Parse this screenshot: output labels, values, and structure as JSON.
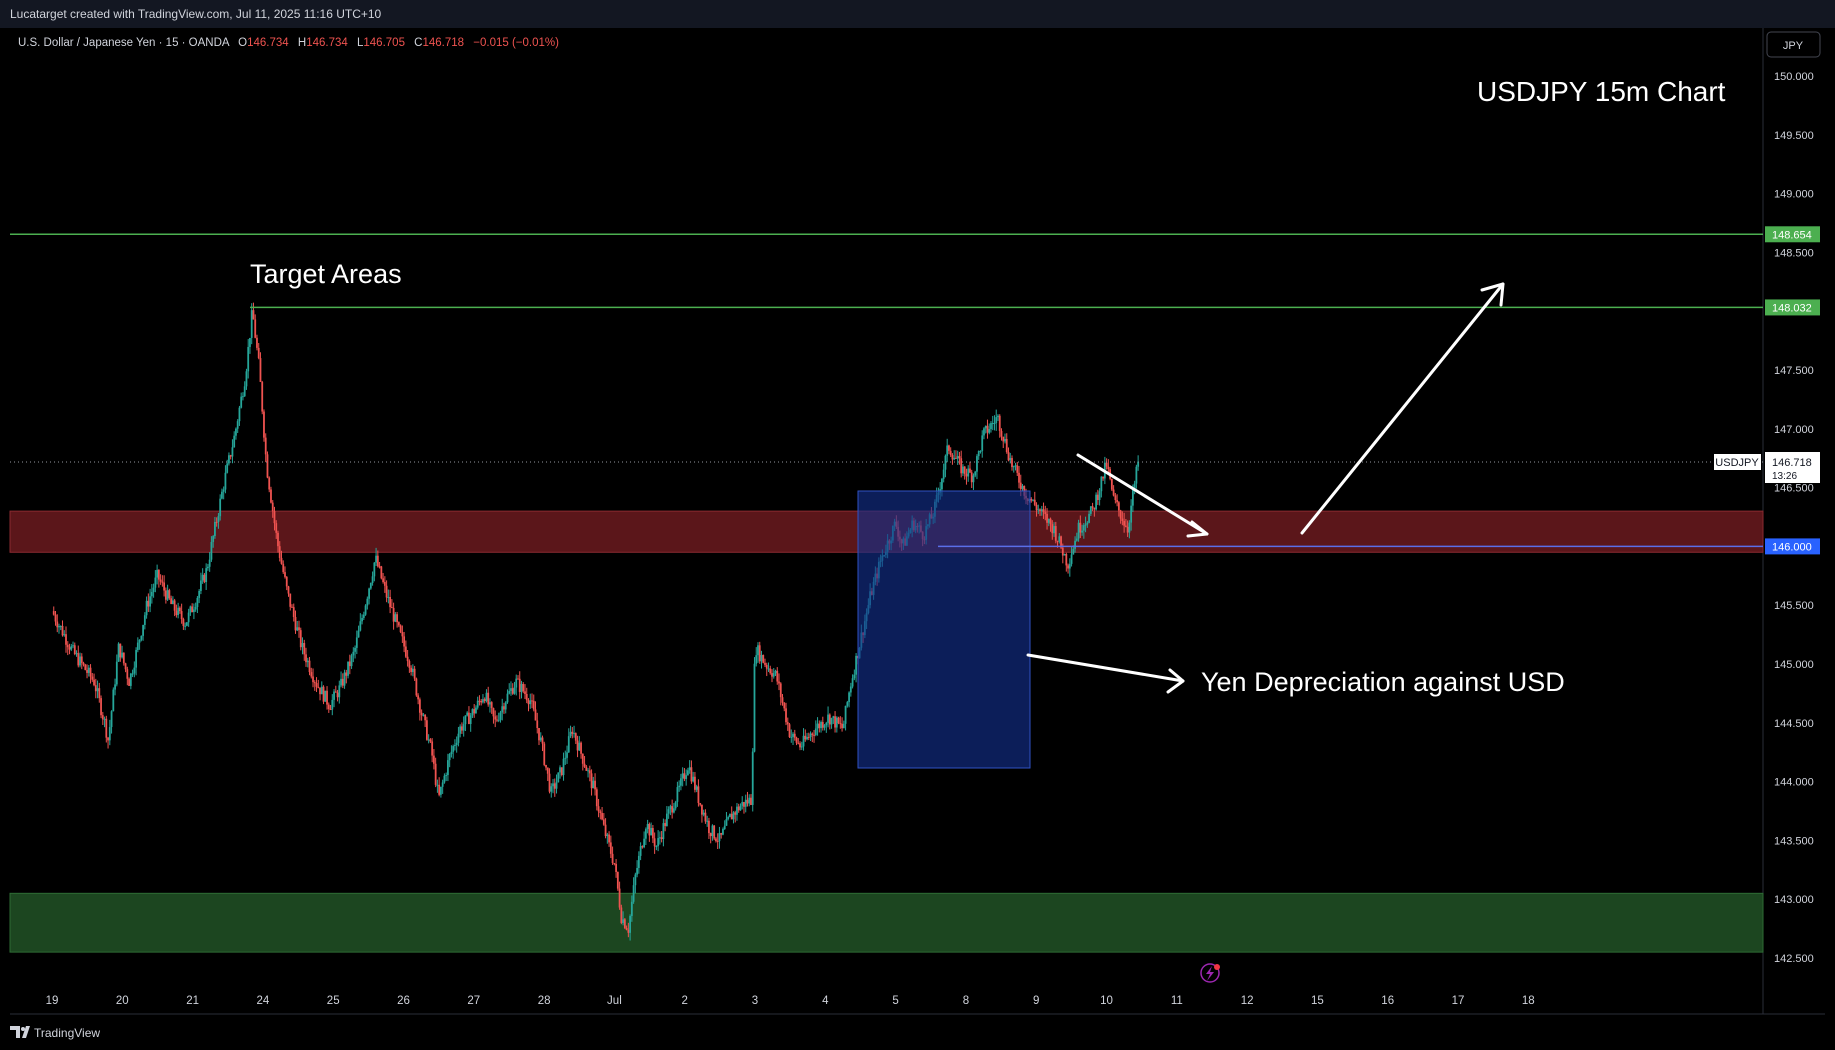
{
  "header": {
    "creator": "Lucatarget created with TradingView.com, Jul 11, 2025 11:16 UTC+10"
  },
  "legend": {
    "symbol": "U.S. Dollar / Japanese Yen · 15 · OANDA",
    "o_label": "O",
    "o_value": "146.734",
    "h_label": "H",
    "h_value": "146.734",
    "l_label": "L",
    "l_value": "146.705",
    "c_label": "C",
    "c_value": "146.718",
    "change": "−0.015 (−0.01%)"
  },
  "currency_button": "JPY",
  "footer": {
    "brand": "TradingView"
  },
  "colors": {
    "background": "#000000",
    "up": "#26a69a",
    "down": "#ef5350",
    "target_line": "#4caf50",
    "resistance_zone": "#6b1a1f",
    "support_zone": "#1e4a22",
    "blue_box": "#0f2a6b",
    "price_line": "#2962ff"
  },
  "chart_data": {
    "type": "candlestick",
    "title": "USDJPY 15m Chart",
    "symbol_tag": "USDJPY",
    "last_price": "146.718",
    "countdown": "13:26",
    "x_ticks": [
      "19",
      "20",
      "21",
      "24",
      "25",
      "26",
      "27",
      "28",
      "Jul",
      "2",
      "3",
      "4",
      "5",
      "8",
      "9",
      "10",
      "11",
      "12",
      "15",
      "16",
      "17",
      "18"
    ],
    "y_ticks": [
      "150.000",
      "149.500",
      "149.000",
      "148.500",
      "147.500",
      "147.000",
      "146.500",
      "145.500",
      "145.000",
      "144.500",
      "144.000",
      "143.500",
      "143.000",
      "142.500"
    ],
    "ylim": [
      142.38,
      150.25
    ],
    "price_points": [
      {
        "x": 0.0,
        "y": 145.45
      },
      {
        "x": 0.3,
        "y": 145.1
      },
      {
        "x": 0.6,
        "y": 144.85
      },
      {
        "x": 0.75,
        "y": 144.5
      },
      {
        "x": 0.8,
        "y": 144.35
      },
      {
        "x": 0.95,
        "y": 145.15
      },
      {
        "x": 1.1,
        "y": 144.85
      },
      {
        "x": 1.2,
        "y": 145.1
      },
      {
        "x": 1.35,
        "y": 145.5
      },
      {
        "x": 1.5,
        "y": 145.75
      },
      {
        "x": 1.7,
        "y": 145.5
      },
      {
        "x": 1.9,
        "y": 145.35
      },
      {
        "x": 2.05,
        "y": 145.55
      },
      {
        "x": 2.2,
        "y": 145.8
      },
      {
        "x": 2.3,
        "y": 146.1
      },
      {
        "x": 2.45,
        "y": 146.55
      },
      {
        "x": 2.6,
        "y": 146.95
      },
      {
        "x": 2.75,
        "y": 147.45
      },
      {
        "x": 2.85,
        "y": 148.0
      },
      {
        "x": 2.95,
        "y": 147.5
      },
      {
        "x": 3.05,
        "y": 146.7
      },
      {
        "x": 3.2,
        "y": 146.05
      },
      {
        "x": 3.35,
        "y": 145.6
      },
      {
        "x": 3.55,
        "y": 145.15
      },
      {
        "x": 3.75,
        "y": 144.85
      },
      {
        "x": 3.95,
        "y": 144.65
      },
      {
        "x": 4.1,
        "y": 144.8
      },
      {
        "x": 4.3,
        "y": 145.1
      },
      {
        "x": 4.45,
        "y": 145.5
      },
      {
        "x": 4.6,
        "y": 145.9
      },
      {
        "x": 4.75,
        "y": 145.6
      },
      {
        "x": 4.95,
        "y": 145.25
      },
      {
        "x": 5.1,
        "y": 145.0
      },
      {
        "x": 5.25,
        "y": 144.6
      },
      {
        "x": 5.4,
        "y": 144.25
      },
      {
        "x": 5.5,
        "y": 143.85
      },
      {
        "x": 5.65,
        "y": 144.2
      },
      {
        "x": 5.8,
        "y": 144.45
      },
      {
        "x": 6.0,
        "y": 144.6
      },
      {
        "x": 6.15,
        "y": 144.75
      },
      {
        "x": 6.3,
        "y": 144.5
      },
      {
        "x": 6.45,
        "y": 144.7
      },
      {
        "x": 6.6,
        "y": 144.85
      },
      {
        "x": 6.8,
        "y": 144.7
      },
      {
        "x": 6.95,
        "y": 144.35
      },
      {
        "x": 7.1,
        "y": 143.9
      },
      {
        "x": 7.25,
        "y": 144.1
      },
      {
        "x": 7.4,
        "y": 144.45
      },
      {
        "x": 7.55,
        "y": 144.2
      },
      {
        "x": 7.7,
        "y": 143.95
      },
      {
        "x": 7.85,
        "y": 143.6
      },
      {
        "x": 8.0,
        "y": 143.3
      },
      {
        "x": 8.1,
        "y": 142.85
      },
      {
        "x": 8.2,
        "y": 142.75
      },
      {
        "x": 8.3,
        "y": 143.2
      },
      {
        "x": 8.45,
        "y": 143.65
      },
      {
        "x": 8.6,
        "y": 143.45
      },
      {
        "x": 8.75,
        "y": 143.7
      },
      {
        "x": 8.9,
        "y": 143.9
      },
      {
        "x": 9.05,
        "y": 144.15
      },
      {
        "x": 9.2,
        "y": 143.85
      },
      {
        "x": 9.35,
        "y": 143.6
      },
      {
        "x": 9.5,
        "y": 143.5
      },
      {
        "x": 9.65,
        "y": 143.7
      },
      {
        "x": 9.8,
        "y": 143.8
      },
      {
        "x": 9.95,
        "y": 143.85
      },
      {
        "x": 10.0,
        "y": 145.15
      },
      {
        "x": 10.15,
        "y": 145.0
      },
      {
        "x": 10.3,
        "y": 144.9
      },
      {
        "x": 10.5,
        "y": 144.4
      },
      {
        "x": 10.65,
        "y": 144.3
      },
      {
        "x": 10.85,
        "y": 144.45
      },
      {
        "x": 11.05,
        "y": 144.55
      },
      {
        "x": 11.25,
        "y": 144.45
      },
      {
        "x": 11.35,
        "y": 144.8
      },
      {
        "x": 11.5,
        "y": 145.2
      },
      {
        "x": 11.65,
        "y": 145.6
      },
      {
        "x": 11.8,
        "y": 145.9
      },
      {
        "x": 12.0,
        "y": 146.2
      },
      {
        "x": 12.1,
        "y": 146.0
      },
      {
        "x": 12.25,
        "y": 146.2
      },
      {
        "x": 12.4,
        "y": 146.1
      },
      {
        "x": 12.55,
        "y": 146.3
      },
      {
        "x": 12.75,
        "y": 146.85
      },
      {
        "x": 12.95,
        "y": 146.65
      },
      {
        "x": 13.1,
        "y": 146.6
      },
      {
        "x": 13.25,
        "y": 146.95
      },
      {
        "x": 13.45,
        "y": 147.1
      },
      {
        "x": 13.65,
        "y": 146.7
      },
      {
        "x": 13.85,
        "y": 146.45
      },
      {
        "x": 14.05,
        "y": 146.3
      },
      {
        "x": 14.25,
        "y": 146.15
      },
      {
        "x": 14.45,
        "y": 145.85
      },
      {
        "x": 14.6,
        "y": 146.15
      },
      {
        "x": 14.8,
        "y": 146.3
      },
      {
        "x": 15.0,
        "y": 146.7
      },
      {
        "x": 15.1,
        "y": 146.4
      },
      {
        "x": 15.3,
        "y": 146.15
      },
      {
        "x": 15.45,
        "y": 146.718
      }
    ],
    "levels": [
      {
        "price": 148.654,
        "label": "148.654"
      },
      {
        "price": 148.032,
        "label": "148.032"
      },
      {
        "price": 146.0,
        "label": "146.000"
      }
    ],
    "zones": [
      {
        "name": "resistance",
        "from": 145.95,
        "to": 146.3
      },
      {
        "name": "support",
        "from": 142.55,
        "to": 143.05
      }
    ],
    "annotations": {
      "target_areas": "Target Areas",
      "yen_depreciation": "Yen Depreciation against USD"
    }
  }
}
